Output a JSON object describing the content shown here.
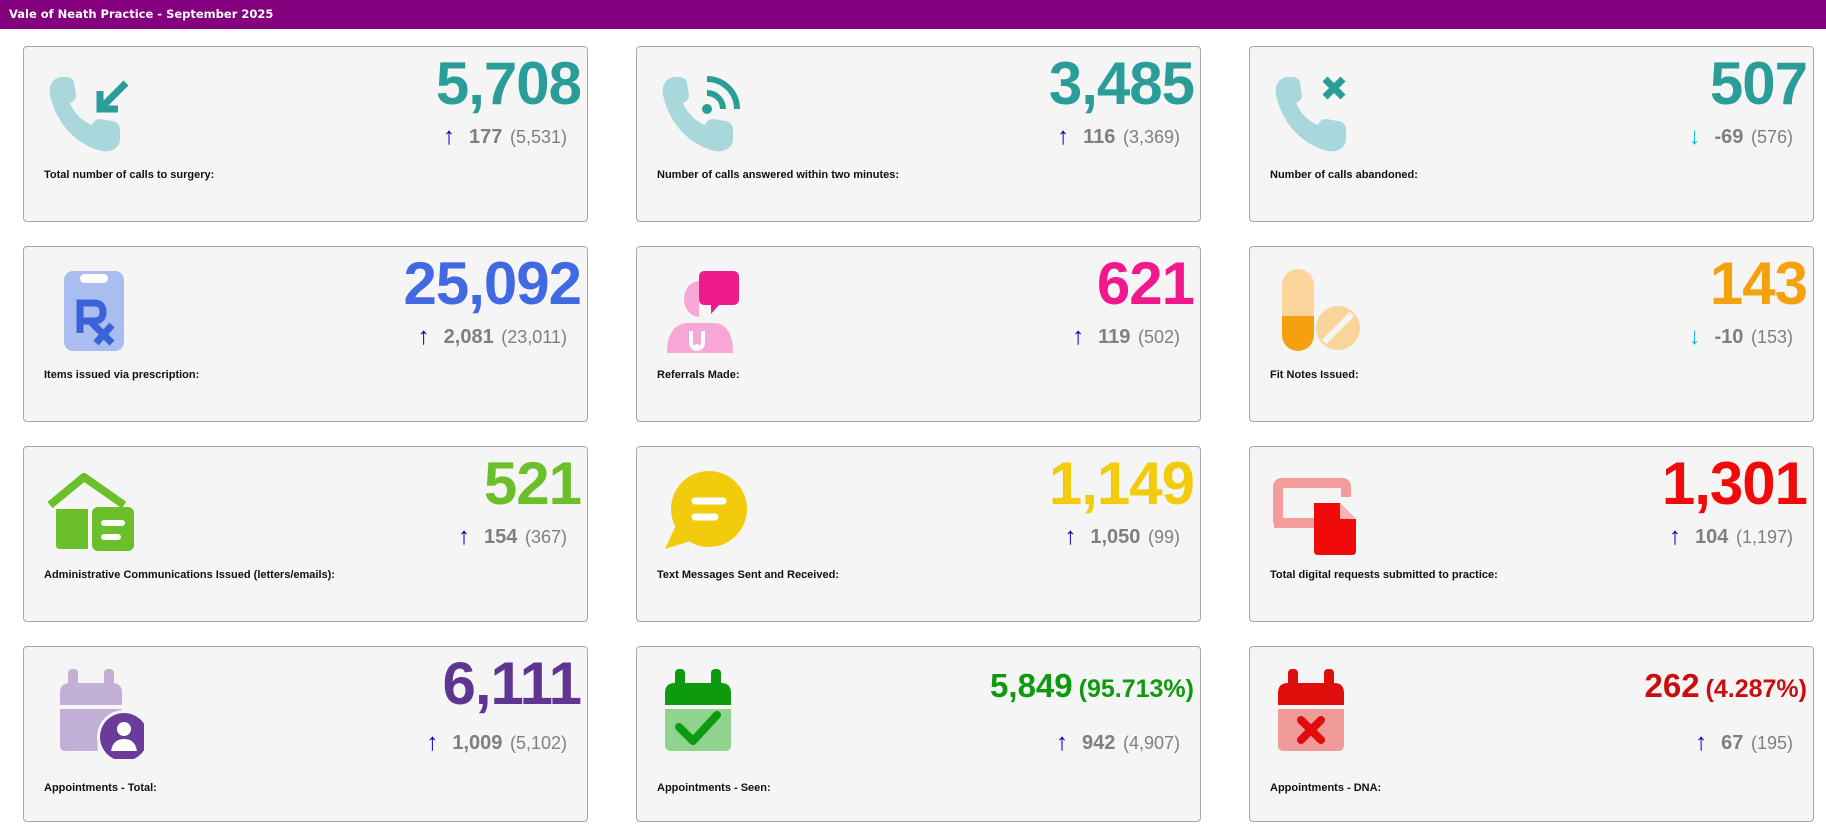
{
  "header": {
    "title": "Vale of Neath Practice - September 2025"
  },
  "colors": {
    "header_bg": "#85007f",
    "arrow_up": "#0000c0",
    "arrow_down": "#17bfe0"
  },
  "cards": [
    {
      "label": "Total number of calls to surgery:",
      "value": "5,708",
      "change": "177",
      "previous": "(5,531)",
      "direction": "up",
      "value_color": "#2a9d99",
      "icon": "incoming-call-icon"
    },
    {
      "label": "Number of calls answered within two minutes:",
      "value": "3,485",
      "change": "116",
      "previous": "(3,369)",
      "direction": "up",
      "value_color": "#2a9d99",
      "icon": "active-call-icon"
    },
    {
      "label": "Number of calls abandoned:",
      "value": "507",
      "change": "-69",
      "previous": "(576)",
      "direction": "down",
      "value_color": "#2a9d99",
      "icon": "missed-call-icon"
    },
    {
      "label": "Items issued via prescription:",
      "value": "25,092",
      "change": "2,081",
      "previous": "(23,011)",
      "direction": "up",
      "value_color": "#4169e1",
      "icon": "prescription-icon"
    },
    {
      "label": "Referrals Made:",
      "value": "621",
      "change": "119",
      "previous": "(502)",
      "direction": "up",
      "value_color": "#f0188c",
      "icon": "doctor-referral-icon"
    },
    {
      "label": "Fit Notes Issued:",
      "value": "143",
      "change": "-10",
      "previous": "(153)",
      "direction": "down",
      "value_color": "#f5a10f",
      "icon": "pills-icon"
    },
    {
      "label": "Administrative Communications Issued (letters/emails):",
      "value": "521",
      "change": "154",
      "previous": "(367)",
      "direction": "up",
      "value_color": "#6bbf2a",
      "icon": "house-document-icon"
    },
    {
      "label": "Text Messages Sent and Received:",
      "value": "1,149",
      "change": "1,050",
      "previous": "(99)",
      "direction": "up",
      "value_color": "#f2cc0c",
      "icon": "chat-bubble-icon"
    },
    {
      "label": "Total digital requests submitted to practice:",
      "value": "1,301",
      "change": "104",
      "previous": "(1,197)",
      "direction": "up",
      "value_color": "#f00a0a",
      "icon": "digital-request-icon"
    },
    {
      "label": "Appointments - Total:",
      "value": "6,111",
      "percent": "",
      "change": "1,009",
      "previous": "(5,102)",
      "direction": "up",
      "value_color": "#5e3590",
      "icon": "calendar-person-icon"
    },
    {
      "label": "Appointments - Seen:",
      "value": "5,849",
      "percent": "(95.713%)",
      "change": "942",
      "previous": "(4,907)",
      "direction": "up",
      "value_color": "#0e9a0e",
      "icon": "calendar-check-icon"
    },
    {
      "label": "Appointments - DNA:",
      "value": "262",
      "percent": "(4.287%)",
      "change": "67",
      "previous": "(195)",
      "direction": "up",
      "value_color": "#c80e0e",
      "icon": "calendar-cross-icon"
    }
  ]
}
